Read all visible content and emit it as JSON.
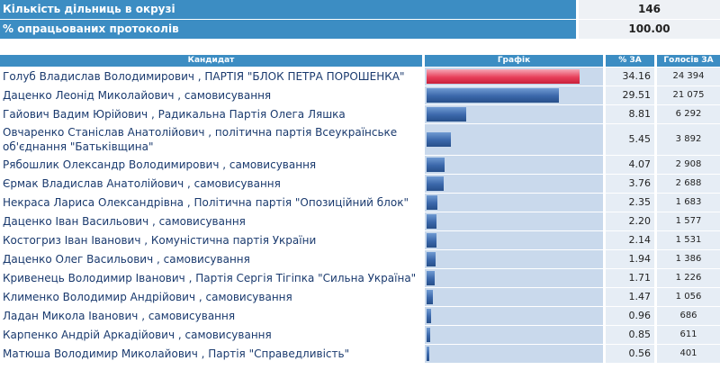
{
  "summary": {
    "districts_label": "Кількість дільниць в окрузі",
    "districts_value": "146",
    "protocols_label": "% опрацьованих протоколів",
    "protocols_value": "100.00"
  },
  "table": {
    "headers": {
      "candidate": "Кандидат",
      "graph": "Графік",
      "pct": "% ЗА",
      "votes": "Голосів ЗА"
    },
    "rows": [
      {
        "name": "Голуб Владислав Володимирович , ПАРТІЯ \"БЛОК ПЕТРА ПОРОШЕНКА\"",
        "pct": 34.16,
        "votes": "24 394",
        "leader": true
      },
      {
        "name": "Даценко Леонід Миколайович , самовисування",
        "pct": 29.51,
        "votes": "21 075"
      },
      {
        "name": "Гайович Вадим Юрійович , Радикальна Партія Олега Ляшка",
        "pct": 8.81,
        "votes": "6 292"
      },
      {
        "name": "Овчаренко Станіслав Анатолійович , політична партія Всеукраїнське об'єднання \"Батьківщина\"",
        "pct": 5.45,
        "votes": "3 892"
      },
      {
        "name": "Рябошлик Олександр Володимирович , самовисування",
        "pct": 4.07,
        "votes": "2 908"
      },
      {
        "name": "Єрмак Владислав Анатолійович , самовисування",
        "pct": 3.76,
        "votes": "2 688"
      },
      {
        "name": "Некраса Лариса Олександрівна , Політична партія \"Опозиційний блок\"",
        "pct": 2.35,
        "votes": "1 683"
      },
      {
        "name": "Даценко Іван Васильович , самовисування",
        "pct": 2.2,
        "votes": "1 577"
      },
      {
        "name": "Костогриз Іван Іванович , Комуністична партія України",
        "pct": 2.14,
        "votes": "1 531"
      },
      {
        "name": "Даценко Олег Васильович , самовисування",
        "pct": 1.94,
        "votes": "1 386"
      },
      {
        "name": "Кривенець Володимир Іванович , Партія Сергія Тігіпка \"Сильна Україна\"",
        "pct": 1.71,
        "votes": "1 226"
      },
      {
        "name": "Клименко Володимир Андрійович , самовисування",
        "pct": 1.47,
        "votes": "1 056"
      },
      {
        "name": "Ладан Микола Іванович , самовисування",
        "pct": 0.96,
        "votes": "686"
      },
      {
        "name": "Карпенко Андрій Аркадійович , самовисування",
        "pct": 0.85,
        "votes": "611"
      },
      {
        "name": "Матюша Володимир Миколайович , Партія \"Справедливість\"",
        "pct": 0.56,
        "votes": "401"
      }
    ]
  },
  "colors": {
    "header": "#3c8dc3",
    "leader_bar": "#e8405b",
    "bar": "#3a67aa"
  }
}
